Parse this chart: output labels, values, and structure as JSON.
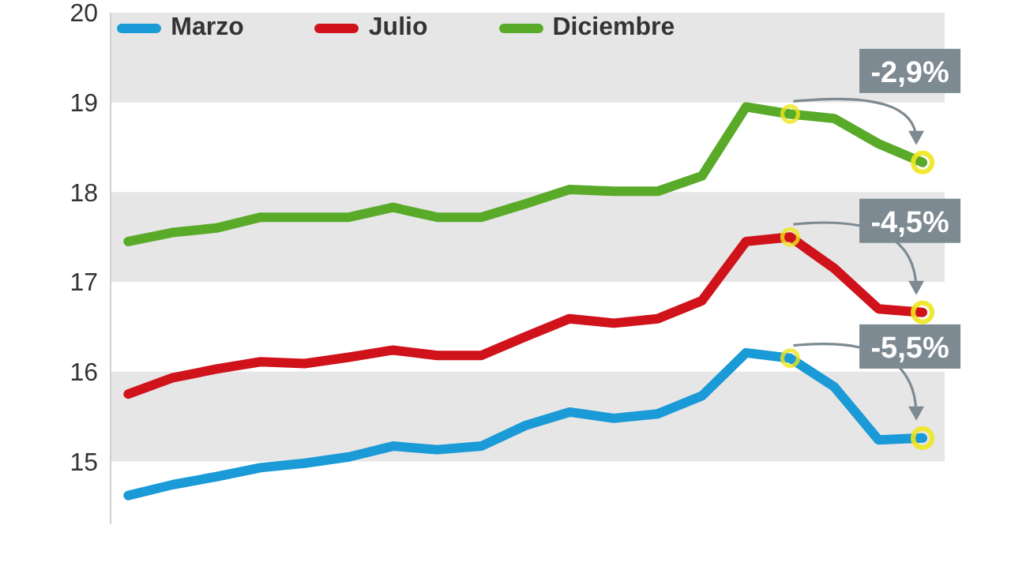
{
  "chart_data": {
    "type": "line",
    "categories": [
      null,
      null,
      null,
      null,
      null,
      null,
      null,
      null,
      null,
      null,
      null,
      null,
      null,
      null,
      null,
      null,
      null,
      null,
      null
    ],
    "series": [
      {
        "name": "Marzo",
        "color": "#1a9ad6",
        "values": [
          14.62,
          14.74,
          14.83,
          14.93,
          14.98,
          15.05,
          15.17,
          15.13,
          15.17,
          15.4,
          15.55,
          15.48,
          15.53,
          15.73,
          16.21,
          16.15,
          15.83,
          15.24,
          15.26
        ]
      },
      {
        "name": "Julio",
        "color": "#d0121b",
        "values": [
          15.75,
          15.93,
          16.03,
          16.11,
          16.09,
          16.16,
          16.24,
          16.18,
          16.18,
          16.39,
          16.59,
          16.54,
          16.59,
          16.79,
          17.45,
          17.5,
          17.15,
          16.7,
          16.66
        ]
      },
      {
        "name": "Diciembre",
        "color": "#5aaa2a",
        "values": [
          17.45,
          17.55,
          17.6,
          17.72,
          17.72,
          17.72,
          17.83,
          17.72,
          17.72,
          17.87,
          18.03,
          18.01,
          18.01,
          18.18,
          18.95,
          18.87,
          18.82,
          18.54,
          18.33
        ]
      }
    ],
    "ylim": [
      14.3,
      20
    ],
    "yticks": [
      15,
      16,
      17,
      18,
      19,
      20
    ],
    "grid": false,
    "legend": "top left",
    "marker": "none",
    "line_style": "solid",
    "bands": [
      {
        "axis": "y",
        "from": 15,
        "to": 16,
        "color": "#e6e6e6"
      },
      {
        "axis": "y",
        "from": 17,
        "to": 18,
        "color": "#e6e6e6"
      },
      {
        "axis": "y",
        "from": 19,
        "to": 20,
        "color": "#e6e6e6"
      }
    ],
    "annotations": [
      {
        "text": "-5,5%",
        "y": 15.26
      },
      {
        "text": "-4,5%",
        "y": 16.66
      },
      {
        "text": "-2,9%",
        "y": 18.33
      }
    ]
  }
}
